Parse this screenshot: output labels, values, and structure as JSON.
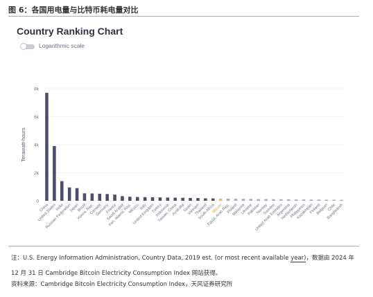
{
  "figure_title": "图 6：各国用电量与比特币耗电量对比",
  "toggle": {
    "label": "Logarithmic scale",
    "enabled": false
  },
  "note": {
    "prefix": "注：U.S. Energy Information Administration, Country Data, 2019 est. (or most recent available ",
    "link_text": "year)",
    "suffix": "，数据由 2024 年 12 月 31 日 Cambridge Bitcoin Electricity Consumption Index 网站获得。"
  },
  "source": "资料来源：Cambridge Bitcoin Electricity Consumption Index，天风证券研究所",
  "colors": {
    "bar": "#4c4e6b",
    "highlight": "#f2c14e",
    "tail": "#a9abc0",
    "grid": "#e8e9ee",
    "accent_rule": "#e0a646"
  },
  "chart_data": {
    "type": "bar",
    "title": "Country Ranking Chart",
    "ylabel": "Terawatt-hours",
    "xlabel": "",
    "ylim": [
      0,
      8000
    ],
    "yticks": [
      0,
      2000,
      4000,
      6000,
      8000
    ],
    "ytick_labels": [
      "0",
      "2k",
      "4k",
      "6k",
      "8k"
    ],
    "grid": true,
    "highlight": "Bitcoin",
    "categories": [
      "China",
      "United States",
      "India",
      "Russian Federation",
      "Japan",
      "Brazil",
      "Korea, Rep.",
      "Canada",
      "Germany",
      "France",
      "Saudi Arabia",
      "Iran, Islamic Rep.",
      "Mexico",
      "Italy",
      "United Kingdom",
      "Turkey",
      "Indonesia",
      "Taiwan, China",
      "Australia",
      "Spain",
      "Vietnam",
      "Thailand",
      "South Africa",
      "Bitcoin",
      "Egypt, Arab Rep.",
      "Poland",
      "Malaysia",
      "Ukraine",
      "Pakistan",
      "Norway",
      "Sweden",
      "United Arab Emirates",
      "Argentina",
      "Netherlands",
      "Philippines",
      "Kazakhstan",
      "Finland",
      "Belgium",
      "Chile",
      "Bangladesh"
    ],
    "values": [
      7700,
      3900,
      1400,
      950,
      900,
      530,
      520,
      500,
      480,
      440,
      330,
      290,
      270,
      260,
      250,
      240,
      230,
      220,
      210,
      200,
      190,
      175,
      165,
      155,
      150,
      140,
      135,
      130,
      120,
      115,
      110,
      105,
      100,
      95,
      90,
      85,
      80,
      75,
      70,
      65
    ],
    "x_tick_labels": [
      "China",
      "United States",
      "India",
      "Russian Federation",
      "Japan",
      "Brazil",
      "Korea, Rep.",
      "Canada",
      "Germany",
      "France",
      "Saudi Arabia",
      "Iran, Islamic Rep.",
      "Mexico",
      "Italy",
      "United Kingdom",
      "Turkey",
      "Indonesia",
      "Taiwan, China",
      "Australia",
      "Spain",
      "Vietnam",
      "Thailand",
      "South Africa",
      "Bitcoin",
      "Egypt, Arab Rep.",
      "Poland",
      "Malaysia",
      "Ukraine",
      "Pakistan",
      "Norway",
      "Sweden",
      "United Arab Emirates",
      "Argentina",
      "Netherlands",
      "Philippines",
      "Kazakhstan",
      "Finland",
      "Belgium",
      "Chile",
      "Bangladesh"
    ]
  }
}
